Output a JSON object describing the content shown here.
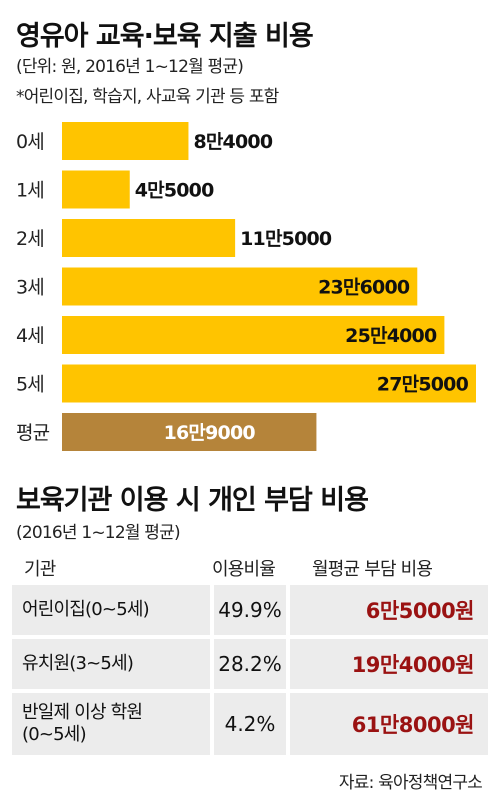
{
  "chart_title": "영유아 교육·보육 지출 비용",
  "chart_subtitle": "(단위: 원, 2016년 1~12월 평균)",
  "chart_note": "*어린이집, 학습지, 사교육 기관 등 포함",
  "colors": {
    "bar": "#ffc400",
    "average_bar": "#b5843a",
    "cost_text": "#9a1212",
    "cell_bg": "#ececec"
  },
  "chart_data": {
    "type": "bar",
    "orientation": "horizontal",
    "title": "영유아 교육·보육 지출 비용",
    "subtitle": "(단위: 원, 2016년 1~12월 평균)",
    "categories": [
      "0세",
      "1세",
      "2세",
      "3세",
      "4세",
      "5세",
      "평균"
    ],
    "values": [
      84000,
      45000,
      115000,
      236000,
      254000,
      275000,
      169000
    ],
    "labels": [
      "8만4000",
      "4만5000",
      "11만5000",
      "23만6000",
      "25만4000",
      "27만5000",
      "16만9000"
    ],
    "xlim": [
      0,
      275000
    ],
    "grid": false,
    "legend": "none"
  },
  "table": {
    "title": "보육기관 이용 시 개인 부담 비용",
    "subtitle": "(2016년 1~12월 평균)",
    "headers": [
      "기관",
      "이용비율",
      "월평균 부담 비용"
    ],
    "rows": [
      {
        "name": [
          "어린이집(0~5세)"
        ],
        "rate": "49.9%",
        "cost": "6만5000원"
      },
      {
        "name": [
          "유치원(3~5세)"
        ],
        "rate": "28.2%",
        "cost": "19만4000원"
      },
      {
        "name": [
          "반일제 이상 학원",
          "(0~5세)"
        ],
        "rate": "4.2%",
        "cost": "61만8000원"
      }
    ]
  },
  "source": "자료: 육아정책연구소"
}
